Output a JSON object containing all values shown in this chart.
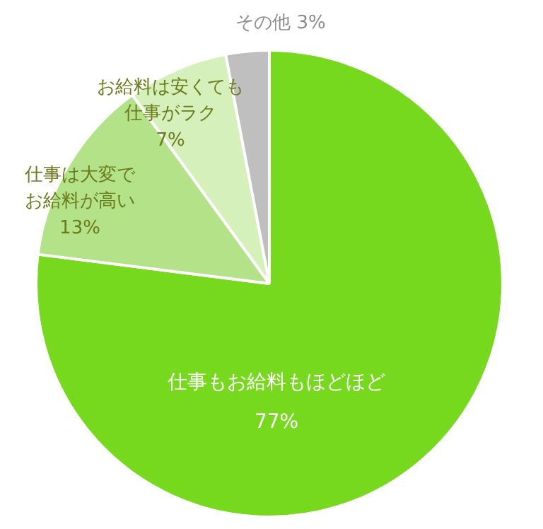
{
  "chart_data": {
    "type": "pie",
    "categories": [
      "仕事もお給料もほどほど",
      "仕事は大変でお給料が高い",
      "お給料は安くても仕事がラク",
      "その他"
    ],
    "values": [
      77,
      13,
      7,
      3
    ],
    "value_labels": [
      "77%",
      "13%",
      "7%",
      "3%"
    ],
    "colors": [
      "#77d91e",
      "#b3e289",
      "#d5f0bb",
      "#bfbfbf"
    ]
  }
}
